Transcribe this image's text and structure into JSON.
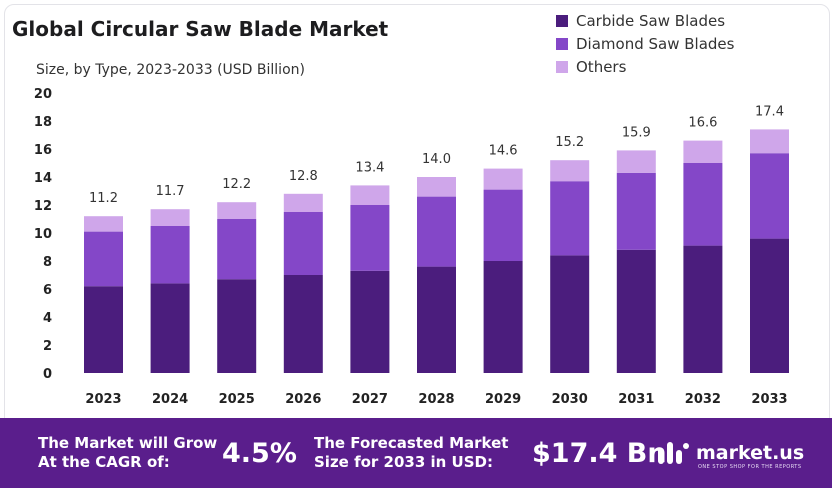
{
  "header": {
    "title": "Global Circular Saw Blade Market",
    "subtitle": "Size, by Type, 2023-2033 (USD Billion)"
  },
  "colors": {
    "carbide": "#4b1d7d",
    "diamond": "#8447c8",
    "others": "#cfa6ea",
    "footer_bg": "#5a1e8c"
  },
  "chart_data": {
    "type": "bar",
    "stacked": true,
    "title": "Global Circular Saw Blade Market",
    "subtitle": "Size, by Type, 2023-2033 (USD Billion)",
    "categories": [
      "2023",
      "2024",
      "2025",
      "2026",
      "2027",
      "2028",
      "2029",
      "2030",
      "2031",
      "2032",
      "2033"
    ],
    "series": [
      {
        "name": "Carbide Saw Blades",
        "values": [
          6.2,
          6.4,
          6.7,
          7.0,
          7.3,
          7.6,
          8.0,
          8.4,
          8.8,
          9.1,
          9.6
        ]
      },
      {
        "name": "Diamond Saw Blades",
        "values": [
          3.9,
          4.1,
          4.3,
          4.5,
          4.7,
          5.0,
          5.1,
          5.3,
          5.5,
          5.9,
          6.1
        ]
      },
      {
        "name": "Others",
        "values": [
          1.1,
          1.2,
          1.2,
          1.3,
          1.4,
          1.4,
          1.5,
          1.5,
          1.6,
          1.6,
          1.7
        ]
      }
    ],
    "totals": [
      "11.2",
      "11.7",
      "12.2",
      "12.8",
      "13.4",
      "14.0",
      "14.6",
      "15.2",
      "15.9",
      "16.6",
      "17.4"
    ],
    "ylim": [
      0,
      20
    ],
    "yticks": [
      "0",
      "2",
      "4",
      "6",
      "8",
      "10",
      "12",
      "14",
      "16",
      "18",
      "20"
    ],
    "xlabel": "",
    "ylabel": "",
    "grid": false,
    "legend": "top-right"
  },
  "footer": {
    "cagr_label": "The Market will Grow At the CAGR of:",
    "cagr_value": "4.5%",
    "forecast_label": "The Forecasted Market Size for 2033 in USD:",
    "forecast_value": "$17.4 Bn",
    "brand_name": "market.us",
    "brand_tagline": "ONE STOP SHOP FOR THE REPORTS"
  }
}
